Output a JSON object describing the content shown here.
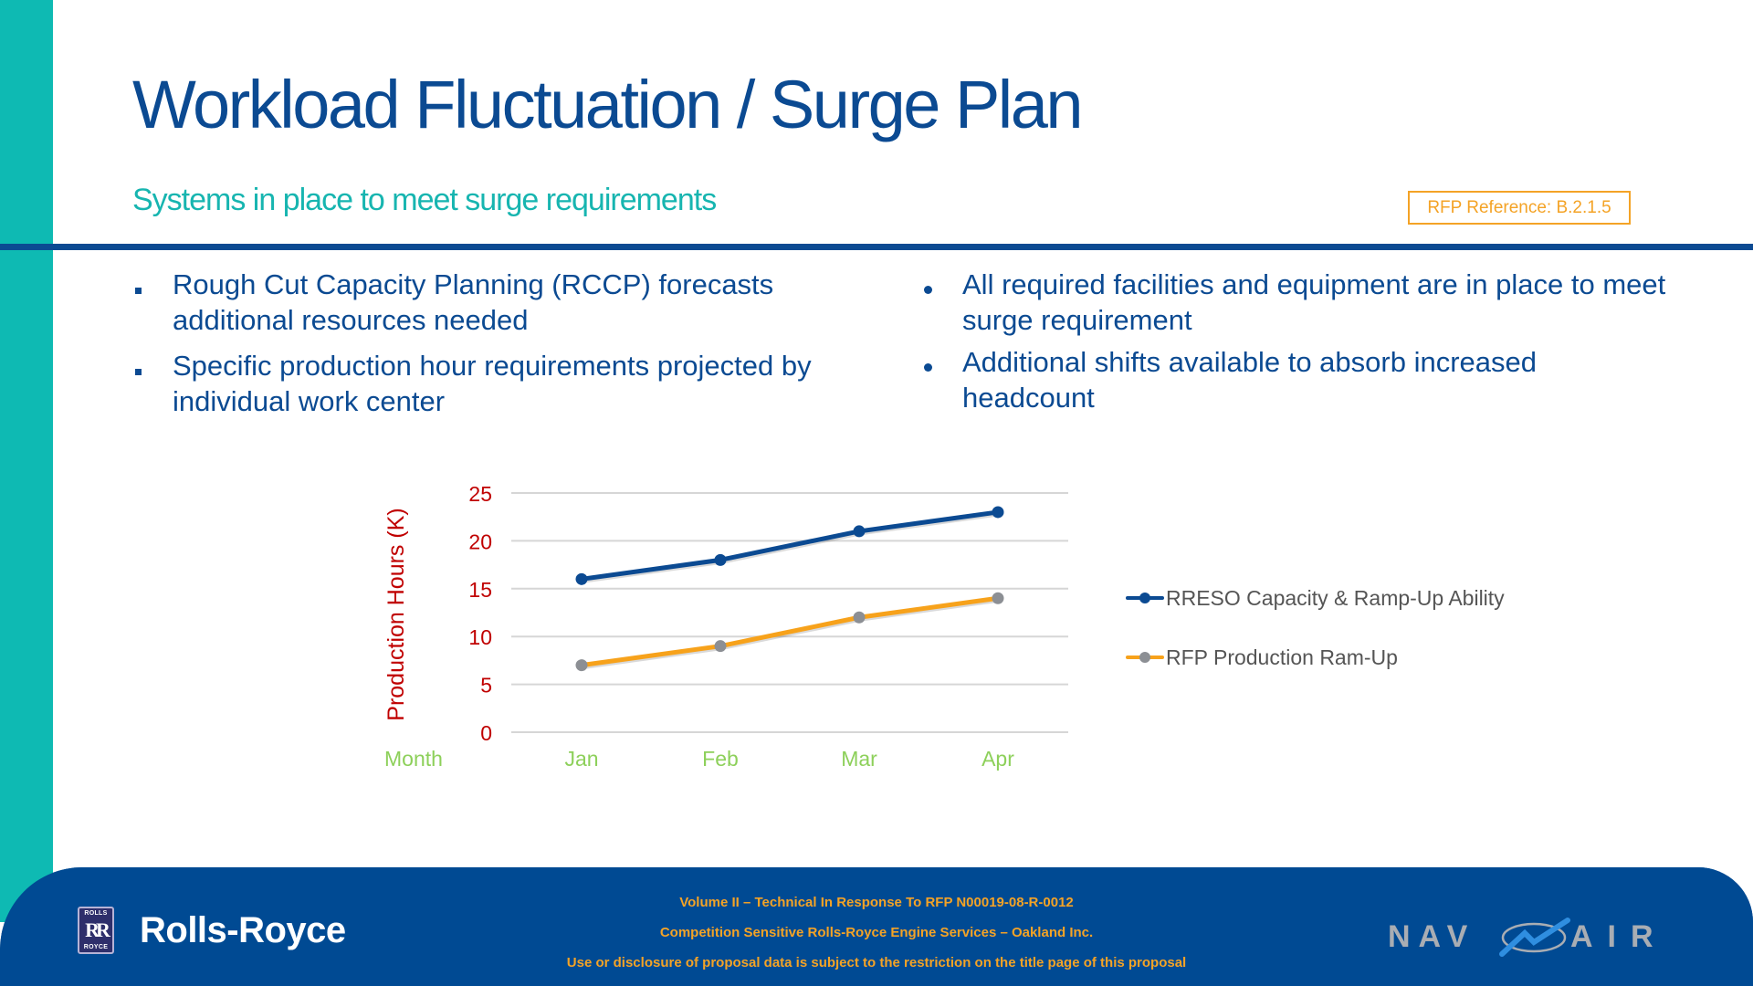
{
  "slide": {
    "title": "Workload Fluctuation / Surge Plan",
    "subtitle": "Systems in place to meet surge requirements",
    "rfp_reference": "RFP Reference: B.2.1.5"
  },
  "bullets_left": [
    "Rough Cut Capacity Planning (RCCP) forecasts additional resources needed",
    "Specific production hour requirements projected by individual work center"
  ],
  "bullets_right": [
    "All required facilities and equipment are in place to meet surge requirement",
    "Additional shifts available to absorb increased headcount"
  ],
  "chart_data": {
    "type": "line",
    "title": "",
    "xlabel": "Month",
    "ylabel": "Production Hours (K)",
    "categories": [
      "Jan",
      "Feb",
      "Mar",
      "Apr"
    ],
    "y_ticks": [
      "0",
      "5",
      "10",
      "15",
      "20",
      "25"
    ],
    "ylim": [
      0,
      25
    ],
    "grid": true,
    "legend_position": "right",
    "series": [
      {
        "name": "RRESO Capacity & Ramp-Up Ability",
        "values": [
          16,
          18,
          21,
          23
        ],
        "line_color": "#0b4a92",
        "marker_color": "#0b4a92"
      },
      {
        "name": "RFP Production Ram-Up",
        "values": [
          7,
          9,
          12,
          14
        ],
        "line_color": "#f7a21b",
        "marker_color": "#8c8f94"
      }
    ],
    "colors": {
      "axis_label": "#c00000",
      "category_label": "#8dd05a",
      "grid": "#d6d6d6"
    }
  },
  "footer": {
    "lines": [
      "Volume II – Technical In Response To RFP N00019-08-R-0012",
      "Competition Sensitive Rolls-Royce Engine Services – Oakland Inc.",
      "Use or disclosure of proposal data is subject to the restriction on the title page of this proposal"
    ],
    "left_logo": {
      "badge_top": "ROLLS",
      "badge_mid": "RR",
      "badge_bottom": "ROYCE",
      "wordmark": "Rolls-Royce"
    },
    "right_logo": {
      "left": "NAV",
      "right": "AIR"
    }
  },
  "colors": {
    "teal": "#0ebab3",
    "navy": "#0b4a92",
    "footer_bg": "#004a93",
    "accent_orange": "#f4a326"
  }
}
